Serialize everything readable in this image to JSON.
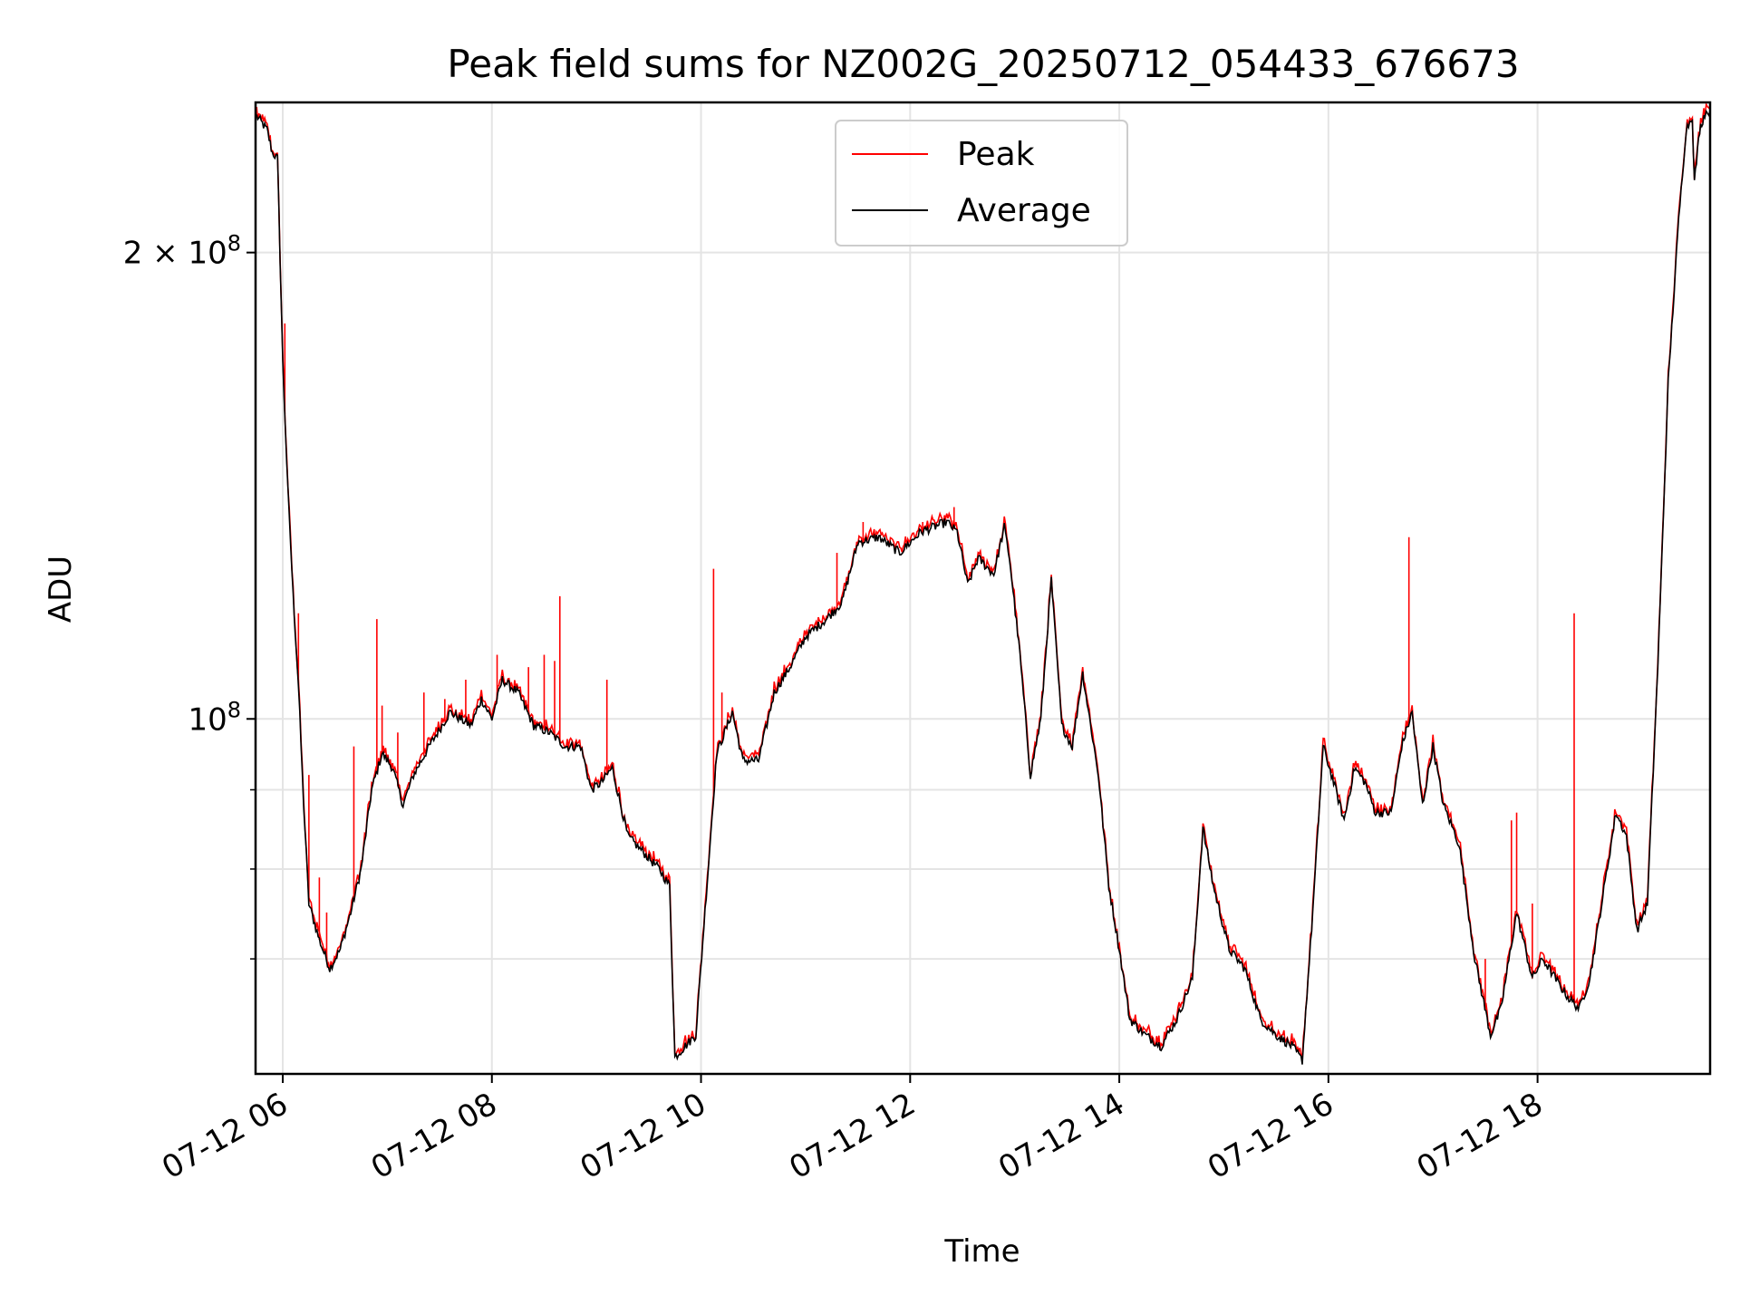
{
  "chart_data": {
    "type": "line",
    "title": "Peak field sums for NZ002G_20250712_054433_676673",
    "xlabel": "Time",
    "ylabel": "ADU",
    "x_ticks": [
      {
        "hour": 6,
        "label": "07-12 06"
      },
      {
        "hour": 8,
        "label": "07-12 08"
      },
      {
        "hour": 10,
        "label": "07-12 10"
      },
      {
        "hour": 12,
        "label": "07-12 12"
      },
      {
        "hour": 14,
        "label": "07-12 14"
      },
      {
        "hour": 16,
        "label": "07-12 16"
      },
      {
        "hour": 18,
        "label": "07-12 18"
      }
    ],
    "y_scale": "log",
    "ylim": [
      59000000,
      250000000
    ],
    "xlim_hours": [
      5.74,
      19.65
    ],
    "y_major_ticks": [
      {
        "value": 100000000,
        "label_base": "10",
        "label_exp": "8",
        "label_prefix": ""
      },
      {
        "value": 200000000,
        "label_base": "10",
        "label_exp": "8",
        "label_prefix": "2 × "
      }
    ],
    "y_minor_ticks": [
      70000000,
      80000000,
      90000000
    ],
    "grid": true,
    "legend": {
      "position": "upper-center",
      "entries": [
        "Peak",
        "Average"
      ]
    },
    "colors": {
      "peak": "#ff0000",
      "average": "#000000"
    },
    "average_series": {
      "name": "Average",
      "points": [
        [
          5.75,
          245000000
        ],
        [
          5.85,
          240000000
        ],
        [
          5.9,
          232000000
        ],
        [
          5.95,
          230000000
        ],
        [
          6.0,
          170000000
        ],
        [
          6.05,
          140000000
        ],
        [
          6.1,
          120000000
        ],
        [
          6.15,
          105000000
        ],
        [
          6.2,
          88000000
        ],
        [
          6.25,
          76000000
        ],
        [
          6.35,
          72000000
        ],
        [
          6.45,
          69000000
        ],
        [
          6.55,
          71000000
        ],
        [
          6.65,
          75000000
        ],
        [
          6.75,
          80000000
        ],
        [
          6.85,
          90000000
        ],
        [
          6.95,
          95000000
        ],
        [
          7.05,
          93000000
        ],
        [
          7.15,
          88000000
        ],
        [
          7.25,
          92000000
        ],
        [
          7.4,
          96000000
        ],
        [
          7.6,
          101000000
        ],
        [
          7.8,
          99000000
        ],
        [
          7.9,
          103000000
        ],
        [
          8.0,
          100000000
        ],
        [
          8.1,
          106000000
        ],
        [
          8.25,
          104000000
        ],
        [
          8.4,
          99000000
        ],
        [
          8.55,
          98000000
        ],
        [
          8.7,
          96000000
        ],
        [
          8.85,
          96000000
        ],
        [
          8.95,
          90000000
        ],
        [
          9.05,
          91000000
        ],
        [
          9.15,
          93000000
        ],
        [
          9.3,
          84000000
        ],
        [
          9.45,
          82000000
        ],
        [
          9.6,
          80000000
        ],
        [
          9.7,
          78000000
        ],
        [
          9.75,
          60500000
        ],
        [
          9.85,
          61500000
        ],
        [
          9.95,
          62500000
        ],
        [
          10.05,
          77000000
        ],
        [
          10.15,
          95000000
        ],
        [
          10.3,
          101000000
        ],
        [
          10.4,
          94000000
        ],
        [
          10.55,
          94000000
        ],
        [
          10.7,
          104000000
        ],
        [
          10.85,
          108000000
        ],
        [
          11.0,
          113000000
        ],
        [
          11.2,
          116000000
        ],
        [
          11.35,
          119000000
        ],
        [
          11.5,
          130000000
        ],
        [
          11.7,
          131000000
        ],
        [
          11.9,
          128000000
        ],
        [
          12.1,
          132000000
        ],
        [
          12.35,
          134000000
        ],
        [
          12.45,
          132000000
        ],
        [
          12.55,
          122000000
        ],
        [
          12.65,
          127000000
        ],
        [
          12.8,
          124000000
        ],
        [
          12.9,
          133000000
        ],
        [
          12.95,
          127000000
        ],
        [
          13.05,
          110000000
        ],
        [
          13.15,
          92000000
        ],
        [
          13.25,
          100000000
        ],
        [
          13.35,
          123000000
        ],
        [
          13.45,
          99000000
        ],
        [
          13.55,
          96000000
        ],
        [
          13.65,
          107000000
        ],
        [
          13.8,
          92000000
        ],
        [
          13.9,
          78000000
        ],
        [
          14.0,
          71000000
        ],
        [
          14.1,
          64000000
        ],
        [
          14.25,
          62500000
        ],
        [
          14.4,
          61500000
        ],
        [
          14.55,
          64000000
        ],
        [
          14.7,
          68000000
        ],
        [
          14.8,
          85000000
        ],
        [
          14.9,
          78000000
        ],
        [
          15.05,
          71000000
        ],
        [
          15.2,
          69000000
        ],
        [
          15.35,
          64000000
        ],
        [
          15.5,
          62500000
        ],
        [
          15.65,
          61500000
        ],
        [
          15.75,
          60200000
        ],
        [
          15.85,
          75000000
        ],
        [
          15.95,
          96000000
        ],
        [
          16.05,
          91000000
        ],
        [
          16.15,
          86000000
        ],
        [
          16.25,
          93000000
        ],
        [
          16.35,
          91000000
        ],
        [
          16.45,
          87000000
        ],
        [
          16.6,
          87000000
        ],
        [
          16.7,
          96000000
        ],
        [
          16.8,
          101000000
        ],
        [
          16.9,
          88000000
        ],
        [
          17.0,
          96000000
        ],
        [
          17.1,
          88000000
        ],
        [
          17.25,
          83000000
        ],
        [
          17.4,
          70000000
        ],
        [
          17.55,
          62500000
        ],
        [
          17.65,
          65000000
        ],
        [
          17.8,
          75000000
        ],
        [
          17.95,
          68000000
        ],
        [
          18.05,
          70000000
        ],
        [
          18.2,
          67500000
        ],
        [
          18.3,
          66000000
        ],
        [
          18.4,
          65000000
        ],
        [
          18.5,
          68000000
        ],
        [
          18.6,
          75000000
        ],
        [
          18.75,
          87000000
        ],
        [
          18.85,
          84000000
        ],
        [
          18.95,
          73000000
        ],
        [
          19.05,
          76000000
        ],
        [
          19.15,
          108000000
        ],
        [
          19.25,
          165000000
        ],
        [
          19.35,
          210000000
        ],
        [
          19.42,
          240000000
        ],
        [
          19.48,
          245000000
        ],
        [
          19.5,
          222000000
        ],
        [
          19.55,
          240000000
        ],
        [
          19.6,
          246000000
        ],
        [
          19.65,
          247000000
        ]
      ]
    },
    "peak_spikes": [
      [
        6.02,
        180000000
      ],
      [
        6.15,
        117000000
      ],
      [
        6.25,
        92000000
      ],
      [
        6.35,
        79000000
      ],
      [
        6.42,
        75000000
      ],
      [
        6.68,
        96000000
      ],
      [
        6.9,
        116000000
      ],
      [
        6.95,
        102000000
      ],
      [
        7.1,
        98000000
      ],
      [
        7.35,
        104000000
      ],
      [
        7.55,
        103000000
      ],
      [
        7.75,
        106000000
      ],
      [
        7.9,
        104000000
      ],
      [
        8.05,
        110000000
      ],
      [
        8.35,
        108000000
      ],
      [
        8.5,
        110000000
      ],
      [
        8.6,
        109000000
      ],
      [
        8.65,
        120000000
      ],
      [
        9.1,
        106000000
      ],
      [
        10.12,
        125000000
      ],
      [
        10.2,
        104000000
      ],
      [
        11.3,
        128000000
      ],
      [
        11.55,
        134000000
      ],
      [
        12.12,
        134000000
      ],
      [
        12.42,
        137000000
      ],
      [
        16.77,
        131000000
      ],
      [
        17.5,
        70000000
      ],
      [
        17.75,
        86000000
      ],
      [
        17.8,
        87000000
      ],
      [
        17.95,
        76000000
      ],
      [
        18.35,
        117000000
      ]
    ]
  }
}
